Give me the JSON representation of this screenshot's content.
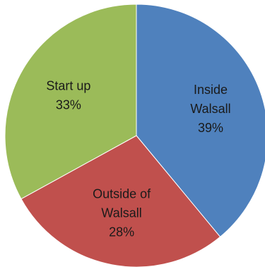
{
  "chart_data": {
    "type": "pie",
    "title": "",
    "slices": [
      {
        "label_lines": [
          "Inside",
          "Walsall"
        ],
        "value": 39,
        "percent_label": "39%",
        "color": "#4f81bd"
      },
      {
        "label_lines": [
          "Outside of",
          "Walsall"
        ],
        "value": 28,
        "percent_label": "28%",
        "color": "#c0504d"
      },
      {
        "label_lines": [
          "Start up"
        ],
        "value": 33,
        "percent_label": "33%",
        "color": "#9bbb59"
      }
    ],
    "start_angle_deg": 0,
    "direction": "clockwise",
    "legend": "none",
    "data_labels": "inside"
  }
}
